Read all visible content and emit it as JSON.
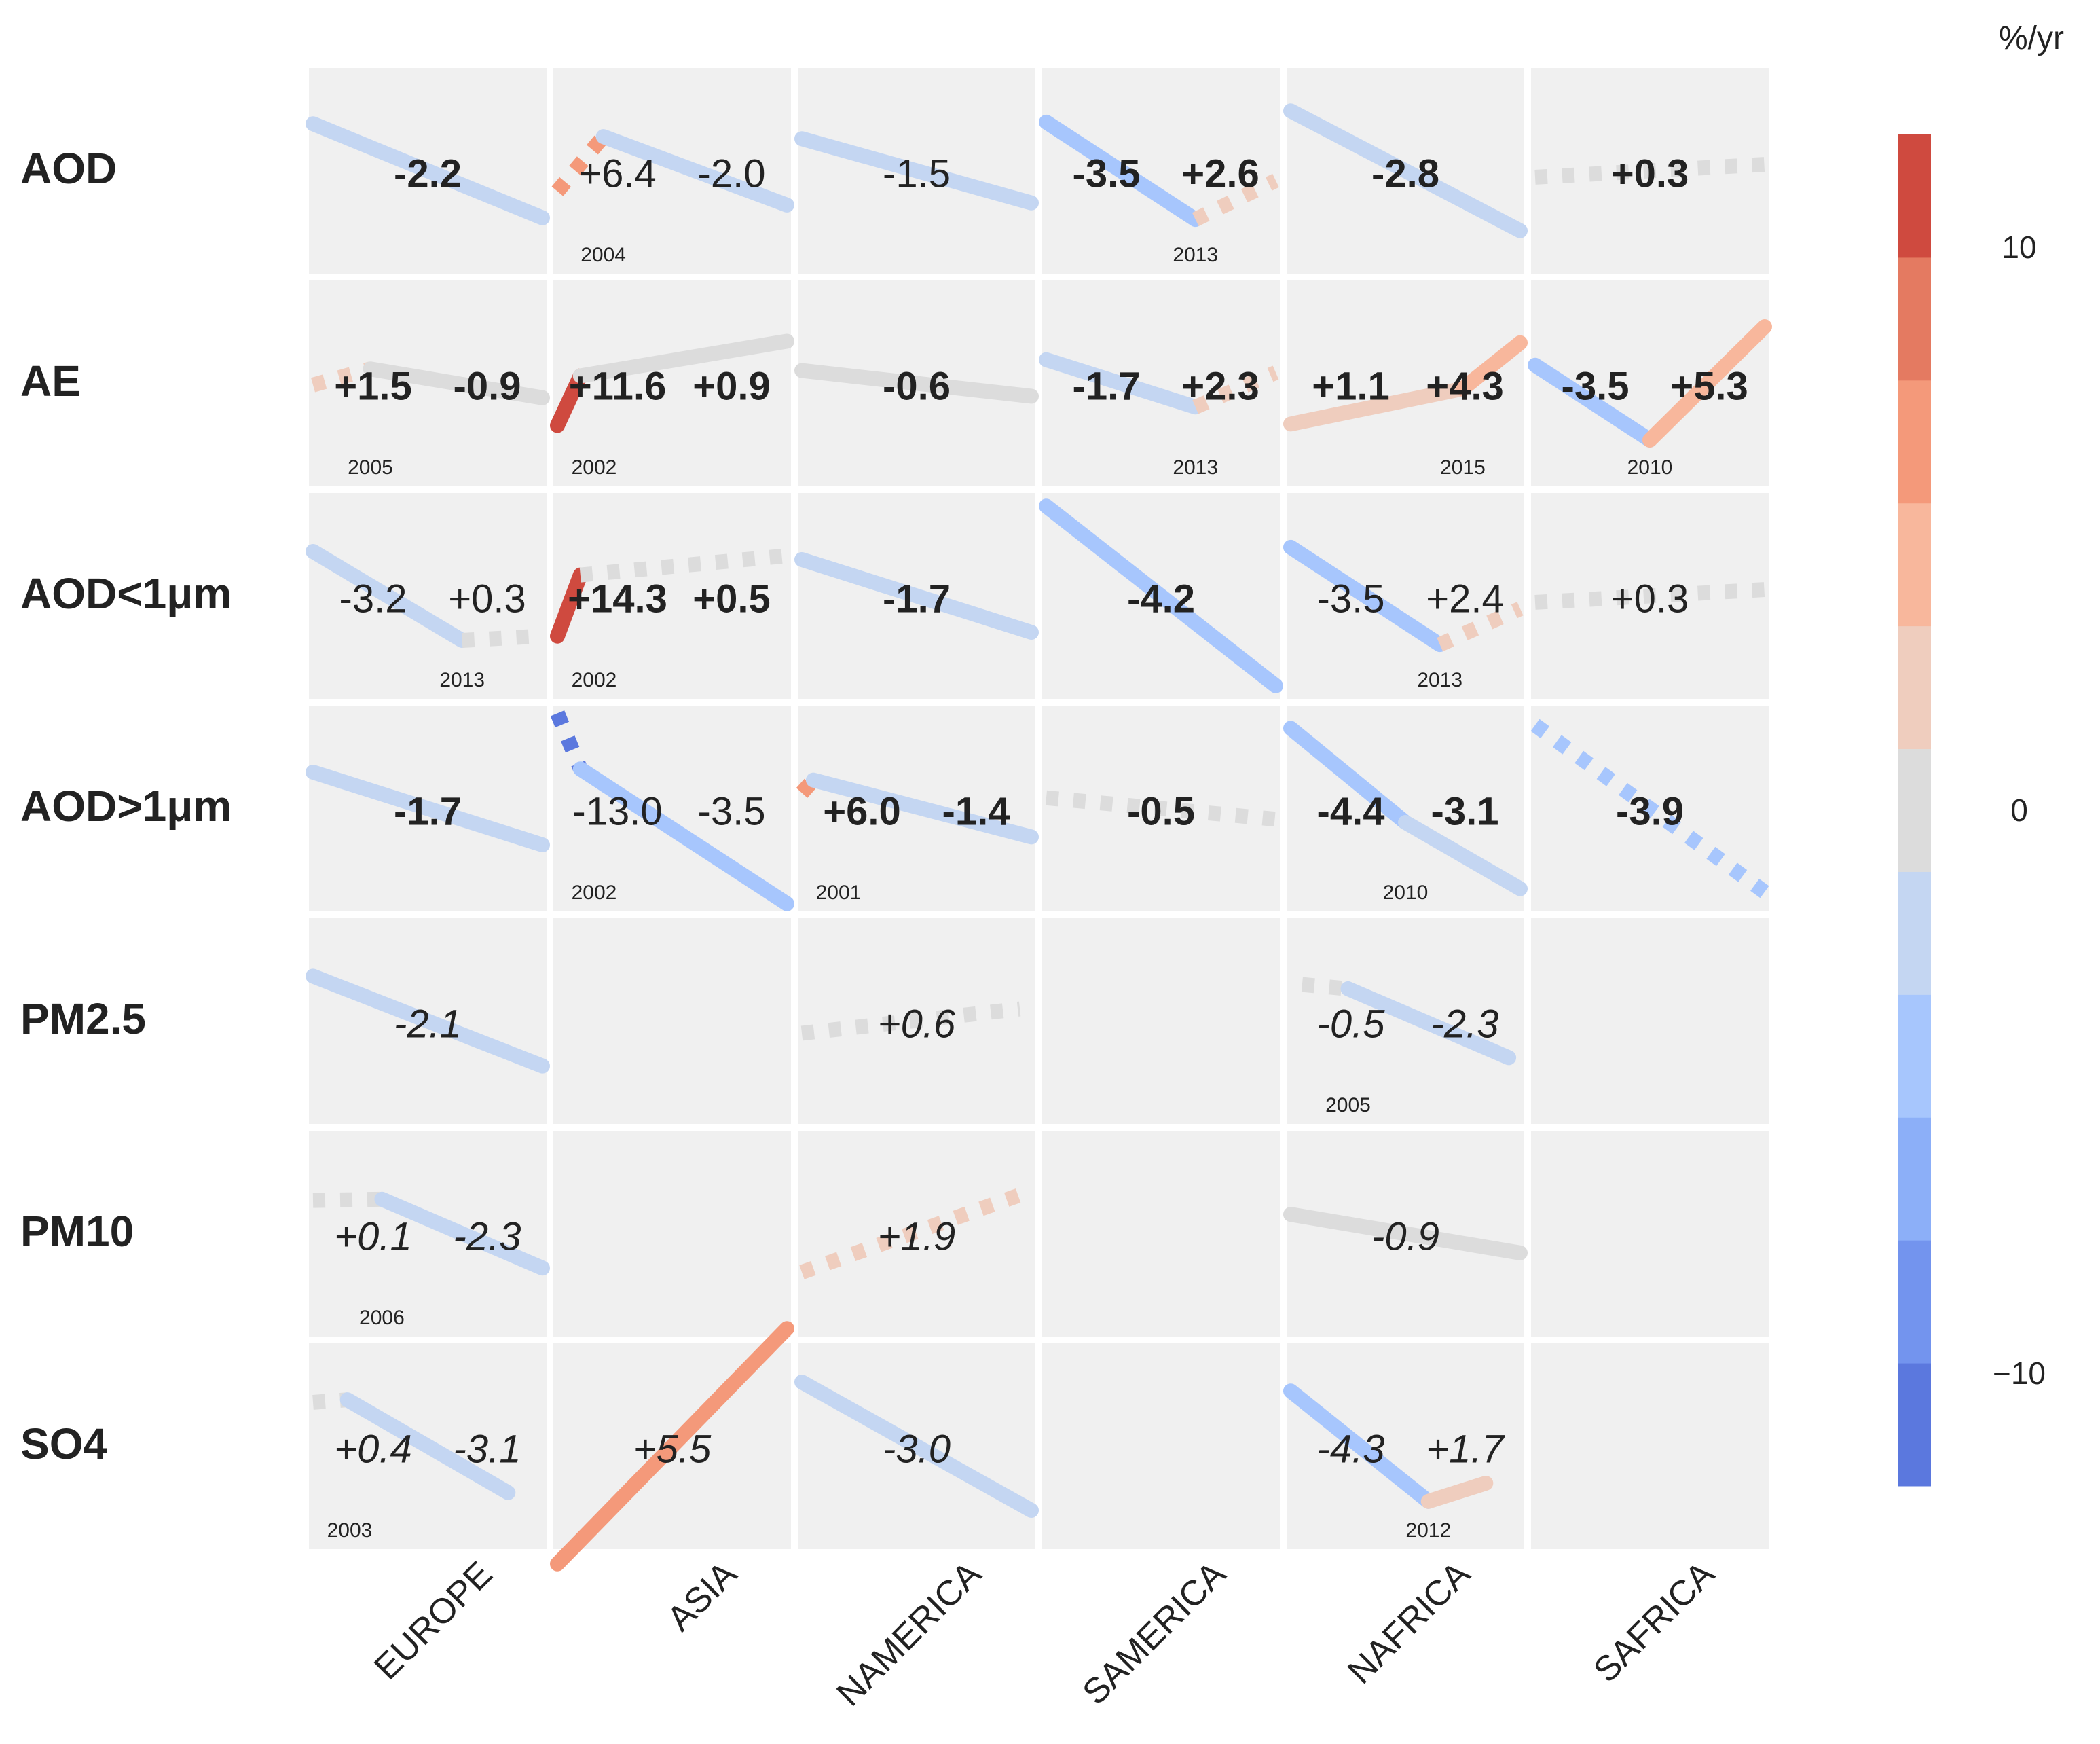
{
  "chart_data": {
    "type": "trend-grid",
    "colorbar": {
      "unit": "%/yr",
      "range": [
        -12,
        12
      ],
      "ticks": [
        "10",
        "0",
        "−10"
      ],
      "tick_values": [
        10,
        0,
        -10
      ],
      "bin_colors": [
        "#5b78de",
        "#7394ee",
        "#8caff8",
        "#a7c6fd",
        "#c4d6f2",
        "#dcdcdc",
        "#efcdbe",
        "#f8b79c",
        "#f4997a",
        "#e47a61",
        "#cf4a3f"
      ]
    },
    "rows": [
      "AOD",
      "AE",
      "AOD<1μm",
      "AOD>1μm",
      "PM2.5",
      "PM10",
      "SO4"
    ],
    "columns": [
      "EUROPE",
      "ASIA",
      "NAMERICA",
      "SAMERICA",
      "NAFRICA",
      "SAFRICA"
    ],
    "x_range": [
      2000,
      2020
    ],
    "cells": [
      {
        "row": 0,
        "col": 0,
        "style": "bold",
        "segments": [
          {
            "from": 2000,
            "to": 2020,
            "rate": -2.2,
            "sig": true,
            "label": "-2.2"
          }
        ]
      },
      {
        "row": 0,
        "col": 1,
        "style": "normal",
        "breakpoint": "2004",
        "segments": [
          {
            "from": 2000,
            "to": 2004,
            "rate": 6.4,
            "sig": false,
            "label": "+6.4"
          },
          {
            "from": 2004,
            "to": 2020,
            "rate": -2.0,
            "sig": true,
            "label": "-2.0"
          }
        ]
      },
      {
        "row": 0,
        "col": 2,
        "style": "normal",
        "segments": [
          {
            "from": 2000,
            "to": 2020,
            "rate": -1.5,
            "sig": true,
            "label": "-1.5"
          }
        ]
      },
      {
        "row": 0,
        "col": 3,
        "style": "bold",
        "breakpoint": "2013",
        "segments": [
          {
            "from": 2000,
            "to": 2013,
            "rate": -3.5,
            "sig": true,
            "label": "-3.5"
          },
          {
            "from": 2013,
            "to": 2020,
            "rate": 2.6,
            "sig": false,
            "label": "+2.6"
          }
        ]
      },
      {
        "row": 0,
        "col": 4,
        "style": "bold",
        "segments": [
          {
            "from": 2000,
            "to": 2020,
            "rate": -2.8,
            "sig": true,
            "label": "-2.8"
          }
        ]
      },
      {
        "row": 0,
        "col": 5,
        "style": "bold",
        "segments": [
          {
            "from": 2000,
            "to": 2020,
            "rate": 0.3,
            "sig": false,
            "label": "+0.3"
          }
        ]
      },
      {
        "row": 1,
        "col": 0,
        "style": "bold",
        "breakpoint": "2005",
        "segments": [
          {
            "from": 2000,
            "to": 2005,
            "rate": 1.5,
            "sig": false,
            "label": "+1.5"
          },
          {
            "from": 2005,
            "to": 2020,
            "rate": -0.9,
            "sig": true,
            "label": "-0.9"
          }
        ]
      },
      {
        "row": 1,
        "col": 1,
        "style": "bold",
        "breakpoint": "2002",
        "segments": [
          {
            "from": 2000,
            "to": 2002,
            "rate": 11.6,
            "sig": true,
            "label": "+11.6"
          },
          {
            "from": 2002,
            "to": 2020,
            "rate": 0.9,
            "sig": true,
            "label": "+0.9"
          }
        ]
      },
      {
        "row": 1,
        "col": 2,
        "style": "bold",
        "segments": [
          {
            "from": 2000,
            "to": 2020,
            "rate": -0.6,
            "sig": true,
            "label": "-0.6"
          }
        ]
      },
      {
        "row": 1,
        "col": 3,
        "style": "bold",
        "breakpoint": "2013",
        "segments": [
          {
            "from": 2000,
            "to": 2013,
            "rate": -1.7,
            "sig": true,
            "label": "-1.7"
          },
          {
            "from": 2013,
            "to": 2020,
            "rate": 2.3,
            "sig": false,
            "label": "+2.3"
          }
        ]
      },
      {
        "row": 1,
        "col": 4,
        "style": "bold",
        "breakpoint": "2015",
        "segments": [
          {
            "from": 2000,
            "to": 2015,
            "rate": 1.1,
            "sig": true,
            "label": "+1.1"
          },
          {
            "from": 2015,
            "to": 2020,
            "rate": 4.3,
            "sig": true,
            "label": "+4.3"
          }
        ]
      },
      {
        "row": 1,
        "col": 5,
        "style": "bold",
        "breakpoint": "2010",
        "segments": [
          {
            "from": 2000,
            "to": 2010,
            "rate": -3.5,
            "sig": true,
            "label": "-3.5"
          },
          {
            "from": 2010,
            "to": 2020,
            "rate": 5.3,
            "sig": true,
            "label": "+5.3"
          }
        ]
      },
      {
        "row": 2,
        "col": 0,
        "style": "normal",
        "breakpoint": "2013",
        "segments": [
          {
            "from": 2000,
            "to": 2013,
            "rate": -3.2,
            "sig": true,
            "label": "-3.2"
          },
          {
            "from": 2013,
            "to": 2020,
            "rate": 0.3,
            "sig": false,
            "label": "+0.3"
          }
        ]
      },
      {
        "row": 2,
        "col": 1,
        "style": "bold",
        "breakpoint": "2002",
        "segments": [
          {
            "from": 2000,
            "to": 2002,
            "rate": 14.3,
            "sig": true,
            "label": "+14.3"
          },
          {
            "from": 2002,
            "to": 2020,
            "rate": 0.5,
            "sig": false,
            "label": "+0.5"
          }
        ]
      },
      {
        "row": 2,
        "col": 2,
        "style": "bold",
        "segments": [
          {
            "from": 2000,
            "to": 2020,
            "rate": -1.7,
            "sig": true,
            "label": "-1.7"
          }
        ]
      },
      {
        "row": 2,
        "col": 3,
        "style": "bold",
        "segments": [
          {
            "from": 2000,
            "to": 2020,
            "rate": -4.2,
            "sig": true,
            "label": "-4.2"
          }
        ]
      },
      {
        "row": 2,
        "col": 4,
        "style": "normal",
        "breakpoint": "2013",
        "segments": [
          {
            "from": 2000,
            "to": 2013,
            "rate": -3.5,
            "sig": true,
            "label": "-3.5"
          },
          {
            "from": 2013,
            "to": 2020,
            "rate": 2.4,
            "sig": false,
            "label": "+2.4"
          }
        ]
      },
      {
        "row": 2,
        "col": 5,
        "style": "normal",
        "segments": [
          {
            "from": 2000,
            "to": 2020,
            "rate": 0.3,
            "sig": false,
            "label": "+0.3"
          }
        ]
      },
      {
        "row": 3,
        "col": 0,
        "style": "bold",
        "segments": [
          {
            "from": 2000,
            "to": 2020,
            "rate": -1.7,
            "sig": true,
            "label": "-1.7"
          }
        ]
      },
      {
        "row": 3,
        "col": 1,
        "style": "normal",
        "breakpoint": "2002",
        "segments": [
          {
            "from": 2000,
            "to": 2002,
            "rate": -13.0,
            "sig": false,
            "label": "-13.0"
          },
          {
            "from": 2002,
            "to": 2020,
            "rate": -3.5,
            "sig": true,
            "label": "-3.5"
          }
        ]
      },
      {
        "row": 3,
        "col": 2,
        "style": "bold",
        "breakpoint": "2001",
        "segments": [
          {
            "from": 2000,
            "to": 2001,
            "rate": 6.0,
            "sig": false,
            "label": "+6.0"
          },
          {
            "from": 2001,
            "to": 2020,
            "rate": -1.4,
            "sig": true,
            "label": "-1.4"
          }
        ]
      },
      {
        "row": 3,
        "col": 3,
        "style": "bold",
        "segments": [
          {
            "from": 2000,
            "to": 2020,
            "rate": -0.5,
            "sig": false,
            "label": "-0.5"
          }
        ]
      },
      {
        "row": 3,
        "col": 4,
        "style": "bold",
        "breakpoint": "2010",
        "segments": [
          {
            "from": 2000,
            "to": 2010,
            "rate": -4.4,
            "sig": true,
            "label": "-4.4"
          },
          {
            "from": 2010,
            "to": 2020,
            "rate": -3.1,
            "sig": true,
            "label": "-3.1"
          }
        ]
      },
      {
        "row": 3,
        "col": 5,
        "style": "bold",
        "segments": [
          {
            "from": 2000,
            "to": 2020,
            "rate": -3.9,
            "sig": false,
            "label": "-3.9"
          }
        ]
      },
      {
        "row": 4,
        "col": 0,
        "style": "italic",
        "segments": [
          {
            "from": 2000,
            "to": 2020,
            "rate": -2.1,
            "sig": true,
            "label": "-2.1"
          }
        ]
      },
      {
        "row": 4,
        "col": 2,
        "style": "italic",
        "segments": [
          {
            "from": 2000,
            "to": 2019,
            "rate": 0.6,
            "sig": false,
            "label": "+0.6"
          }
        ]
      },
      {
        "row": 4,
        "col": 4,
        "style": "italic",
        "breakpoint": "2005",
        "segments": [
          {
            "from": 2001,
            "to": 2005,
            "rate": -0.5,
            "sig": false,
            "label": "-0.5"
          },
          {
            "from": 2005,
            "to": 2019,
            "rate": -2.3,
            "sig": true,
            "label": "-2.3"
          }
        ]
      },
      {
        "row": 5,
        "col": 0,
        "style": "italic",
        "breakpoint": "2006",
        "segments": [
          {
            "from": 2000,
            "to": 2006,
            "rate": 0.1,
            "sig": false,
            "label": "+0.1"
          },
          {
            "from": 2006,
            "to": 2020,
            "rate": -2.3,
            "sig": true,
            "label": "-2.3"
          }
        ]
      },
      {
        "row": 5,
        "col": 2,
        "style": "italic",
        "segments": [
          {
            "from": 2000,
            "to": 2019,
            "rate": 1.9,
            "sig": false,
            "label": "+1.9"
          }
        ]
      },
      {
        "row": 5,
        "col": 4,
        "style": "italic",
        "segments": [
          {
            "from": 2000,
            "to": 2020,
            "rate": -0.9,
            "sig": true,
            "label": "-0.9"
          }
        ]
      },
      {
        "row": 6,
        "col": 0,
        "style": "italic",
        "breakpoint": "2003",
        "segments": [
          {
            "from": 2000,
            "to": 2003,
            "rate": 0.4,
            "sig": false,
            "label": "+0.4"
          },
          {
            "from": 2003,
            "to": 2017,
            "rate": -3.1,
            "sig": true,
            "label": "-3.1"
          }
        ]
      },
      {
        "row": 6,
        "col": 1,
        "style": "italic",
        "segments": [
          {
            "from": 2000,
            "to": 2020,
            "rate": 5.5,
            "sig": true,
            "label": "+5.5"
          }
        ]
      },
      {
        "row": 6,
        "col": 2,
        "style": "italic",
        "segments": [
          {
            "from": 2000,
            "to": 2020,
            "rate": -3.0,
            "sig": true,
            "label": "-3.0"
          }
        ]
      },
      {
        "row": 6,
        "col": 4,
        "style": "italic",
        "breakpoint": "2012",
        "segments": [
          {
            "from": 2000,
            "to": 2012,
            "rate": -4.3,
            "sig": true,
            "label": "-4.3"
          },
          {
            "from": 2012,
            "to": 2017,
            "rate": 1.7,
            "sig": true,
            "label": "+1.7"
          }
        ]
      }
    ]
  }
}
